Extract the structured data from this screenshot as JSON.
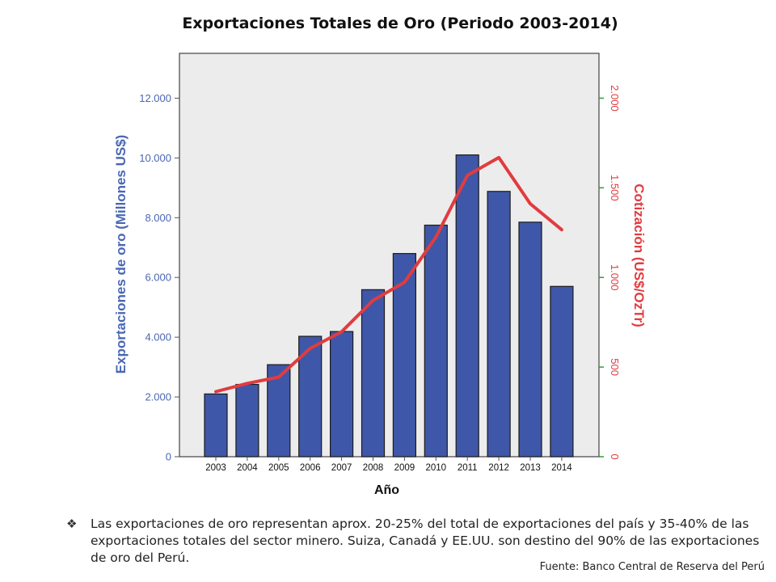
{
  "chart_data": {
    "type": "bar",
    "title": "Exportaciones Totales de Oro (Periodo 2003-2014)",
    "xlabel": "Año",
    "ylabel": "Exportaciones de oro (Millones US$)",
    "y2label": "Cotización (US$/OzTr)",
    "categories": [
      "2003",
      "2004",
      "2005",
      "2006",
      "2007",
      "2008",
      "2009",
      "2010",
      "2011",
      "2012",
      "2013",
      "2014"
    ],
    "series": [
      {
        "type": "bar",
        "axis": "left",
        "color": "#3f57a8",
        "values": [
          2100,
          2420,
          3080,
          4030,
          4190,
          5590,
          6800,
          7750,
          10100,
          8880,
          7850,
          5700
        ]
      },
      {
        "type": "line",
        "axis": "right",
        "color": "#e03c40",
        "values": [
          363,
          409,
          444,
          604,
          697,
          872,
          973,
          1225,
          1569,
          1669,
          1411,
          1266
        ]
      }
    ],
    "ylim": [
      0,
      13500
    ],
    "yticks": [
      0,
      2000,
      4000,
      6000,
      8000,
      10000,
      12000
    ],
    "ytick_labels": [
      "0",
      "2.000",
      "4.000",
      "6.000",
      "8.000",
      "10.000",
      "12.000"
    ],
    "y2lim": [
      0,
      2250
    ],
    "y2ticks": [
      0,
      500,
      1000,
      1500,
      2000
    ],
    "y2tick_labels": [
      "0",
      "500",
      "1.000",
      "1.500",
      "2.000"
    ],
    "left_axis_color": "#4a67b4",
    "right_axis_color": "#e03c40",
    "right_tick_mark_color": "#2aa12a",
    "grid": false
  },
  "note": {
    "bullet": "❖",
    "text": "Las exportaciones de oro representan aprox. 20-25% del total de exportaciones del país y 35-40% de las exportaciones totales del sector minero. Suiza, Canadá y EE.UU. son destino del 90% de las exportaciones de oro del Perú."
  },
  "source": "Fuente: Banco Central de Reserva del Perú"
}
